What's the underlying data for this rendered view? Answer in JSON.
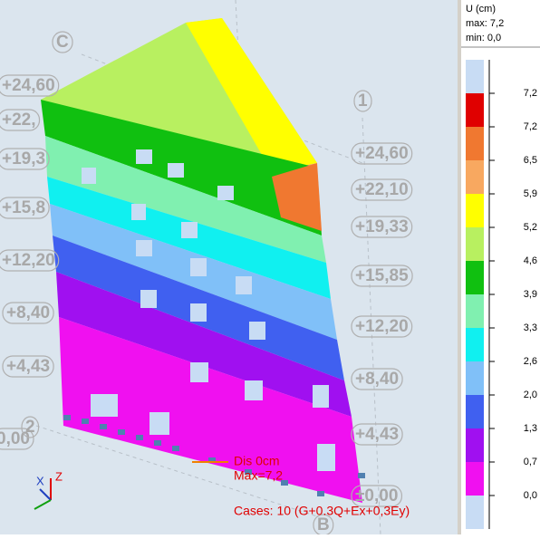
{
  "viewport": {
    "grid_labels": [
      "C",
      "1",
      "2",
      "B"
    ],
    "levels_left": [
      "+24,60",
      "+22,",
      "+19,3",
      "+15,8",
      "+12,20",
      "+8,40",
      "+4,43",
      "0,00"
    ],
    "levels_right": [
      "+24,60",
      "+22,10",
      "+19,33",
      "+15,85",
      "+12,20",
      "+8,40",
      "+4,43",
      "±0,00"
    ],
    "overlay": {
      "dis": "Dis  0cm",
      "max": "Max=7,2",
      "cases": "Cases: 10 (G+0.3Q+Ex+0,3Ey)"
    },
    "axes": {
      "x": "X",
      "z": "Z"
    }
  },
  "legend": {
    "title": "U (cm)",
    "max": "max: 7,2",
    "min": "min:   0,0",
    "colors": [
      "#c8dcf4",
      "#e00000",
      "#f07830",
      "#f8a860",
      "#ffff00",
      "#b8f060",
      "#10c010",
      "#80f0b0",
      "#10f0f0",
      "#80c0f8",
      "#4060f0",
      "#a010f0",
      "#f010f0",
      "#c8dcf4"
    ],
    "labels": [
      "7,2",
      "7,2",
      "6,5",
      "5,9",
      "5,2",
      "4,6",
      "3,9",
      "3,3",
      "2,6",
      "2,0",
      "1,3",
      "0,7",
      "0,0"
    ]
  }
}
